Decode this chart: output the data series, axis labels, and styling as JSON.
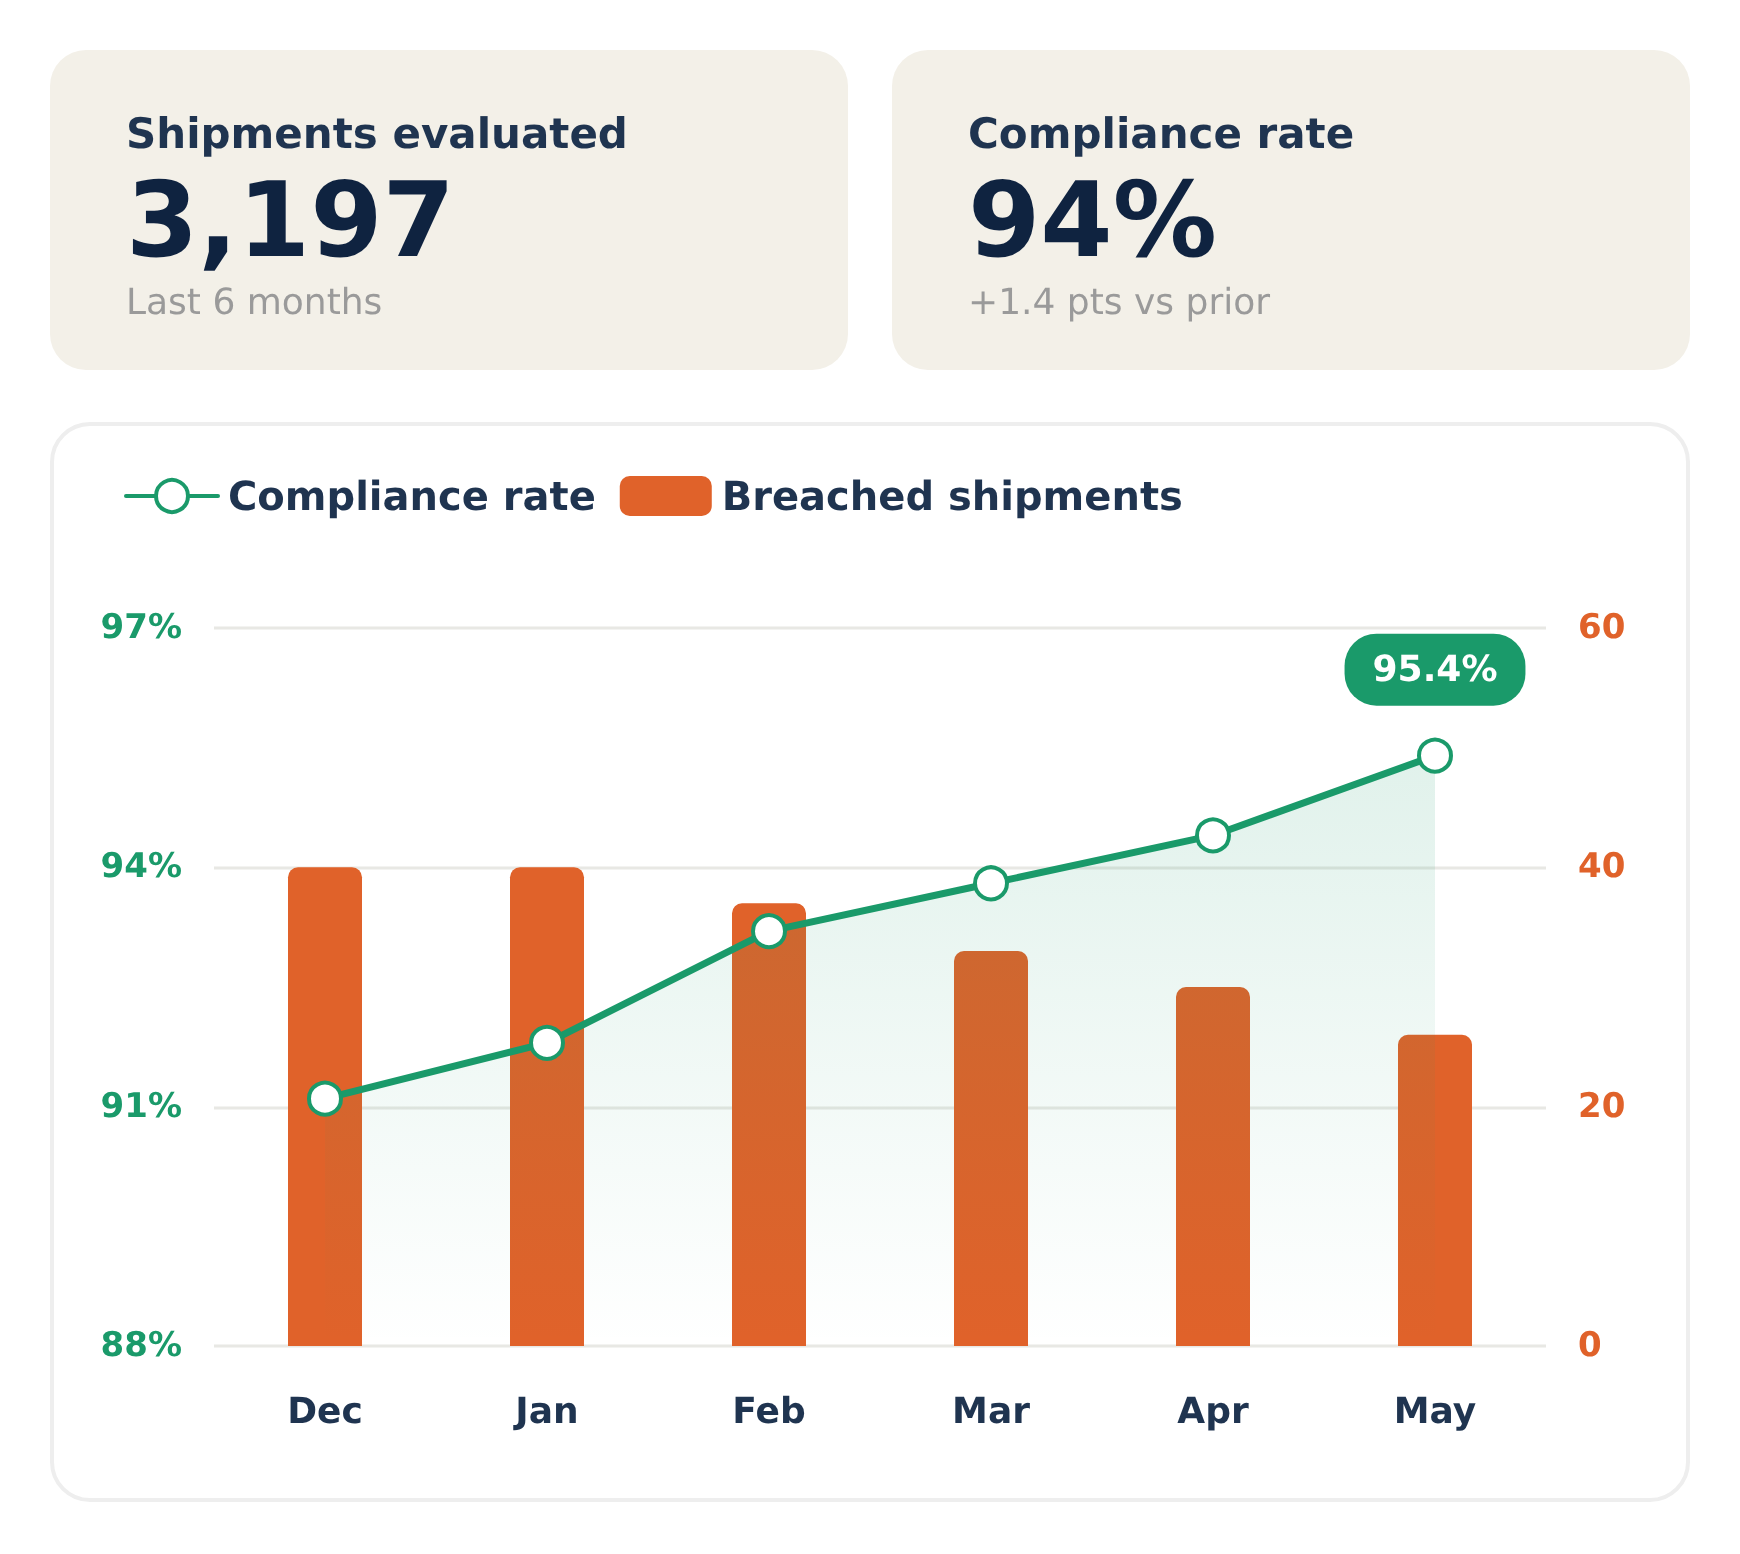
{
  "chart_data": [
    {
      "type": "other",
      "title": "Shipments evaluated",
      "annotations": [
        "3,197",
        "Last 6 months"
      ]
    },
    {
      "type": "other",
      "title": "Compliance rate",
      "annotations": [
        "94%",
        "+1.4 pts vs prior"
      ]
    },
    {
      "type": "bar",
      "categories": [
        "Dec",
        "Jan",
        "Feb",
        "Mar",
        "Apr",
        "May"
      ],
      "series": [
        {
          "name": "Compliance rate",
          "type": "area",
          "color": "#1a9a6a",
          "values": [
            91.1,
            91.8,
            93.2,
            93.8,
            94.4,
            95.4
          ],
          "value_labels": [
            null,
            null,
            null,
            null,
            null,
            "95.4%"
          ]
        },
        {
          "name": "Breached shipments",
          "type": "bar",
          "axis": "y2",
          "color": "#e0622a",
          "values": [
            40,
            40,
            37,
            33,
            30,
            26
          ]
        }
      ],
      "ylim": [
        88,
        97
      ],
      "yticks": [
        {
          "value": 88,
          "label": "88%"
        },
        {
          "value": 91,
          "label": "91%"
        },
        {
          "value": 94,
          "label": "94%"
        },
        {
          "value": 97,
          "label": "97%"
        }
      ],
      "y2lim": [
        0,
        60
      ],
      "y2ticks": [
        0,
        20,
        40,
        60
      ],
      "grid": "y",
      "legend": "top left",
      "marker": "circle",
      "line_style": "solid"
    }
  ]
}
